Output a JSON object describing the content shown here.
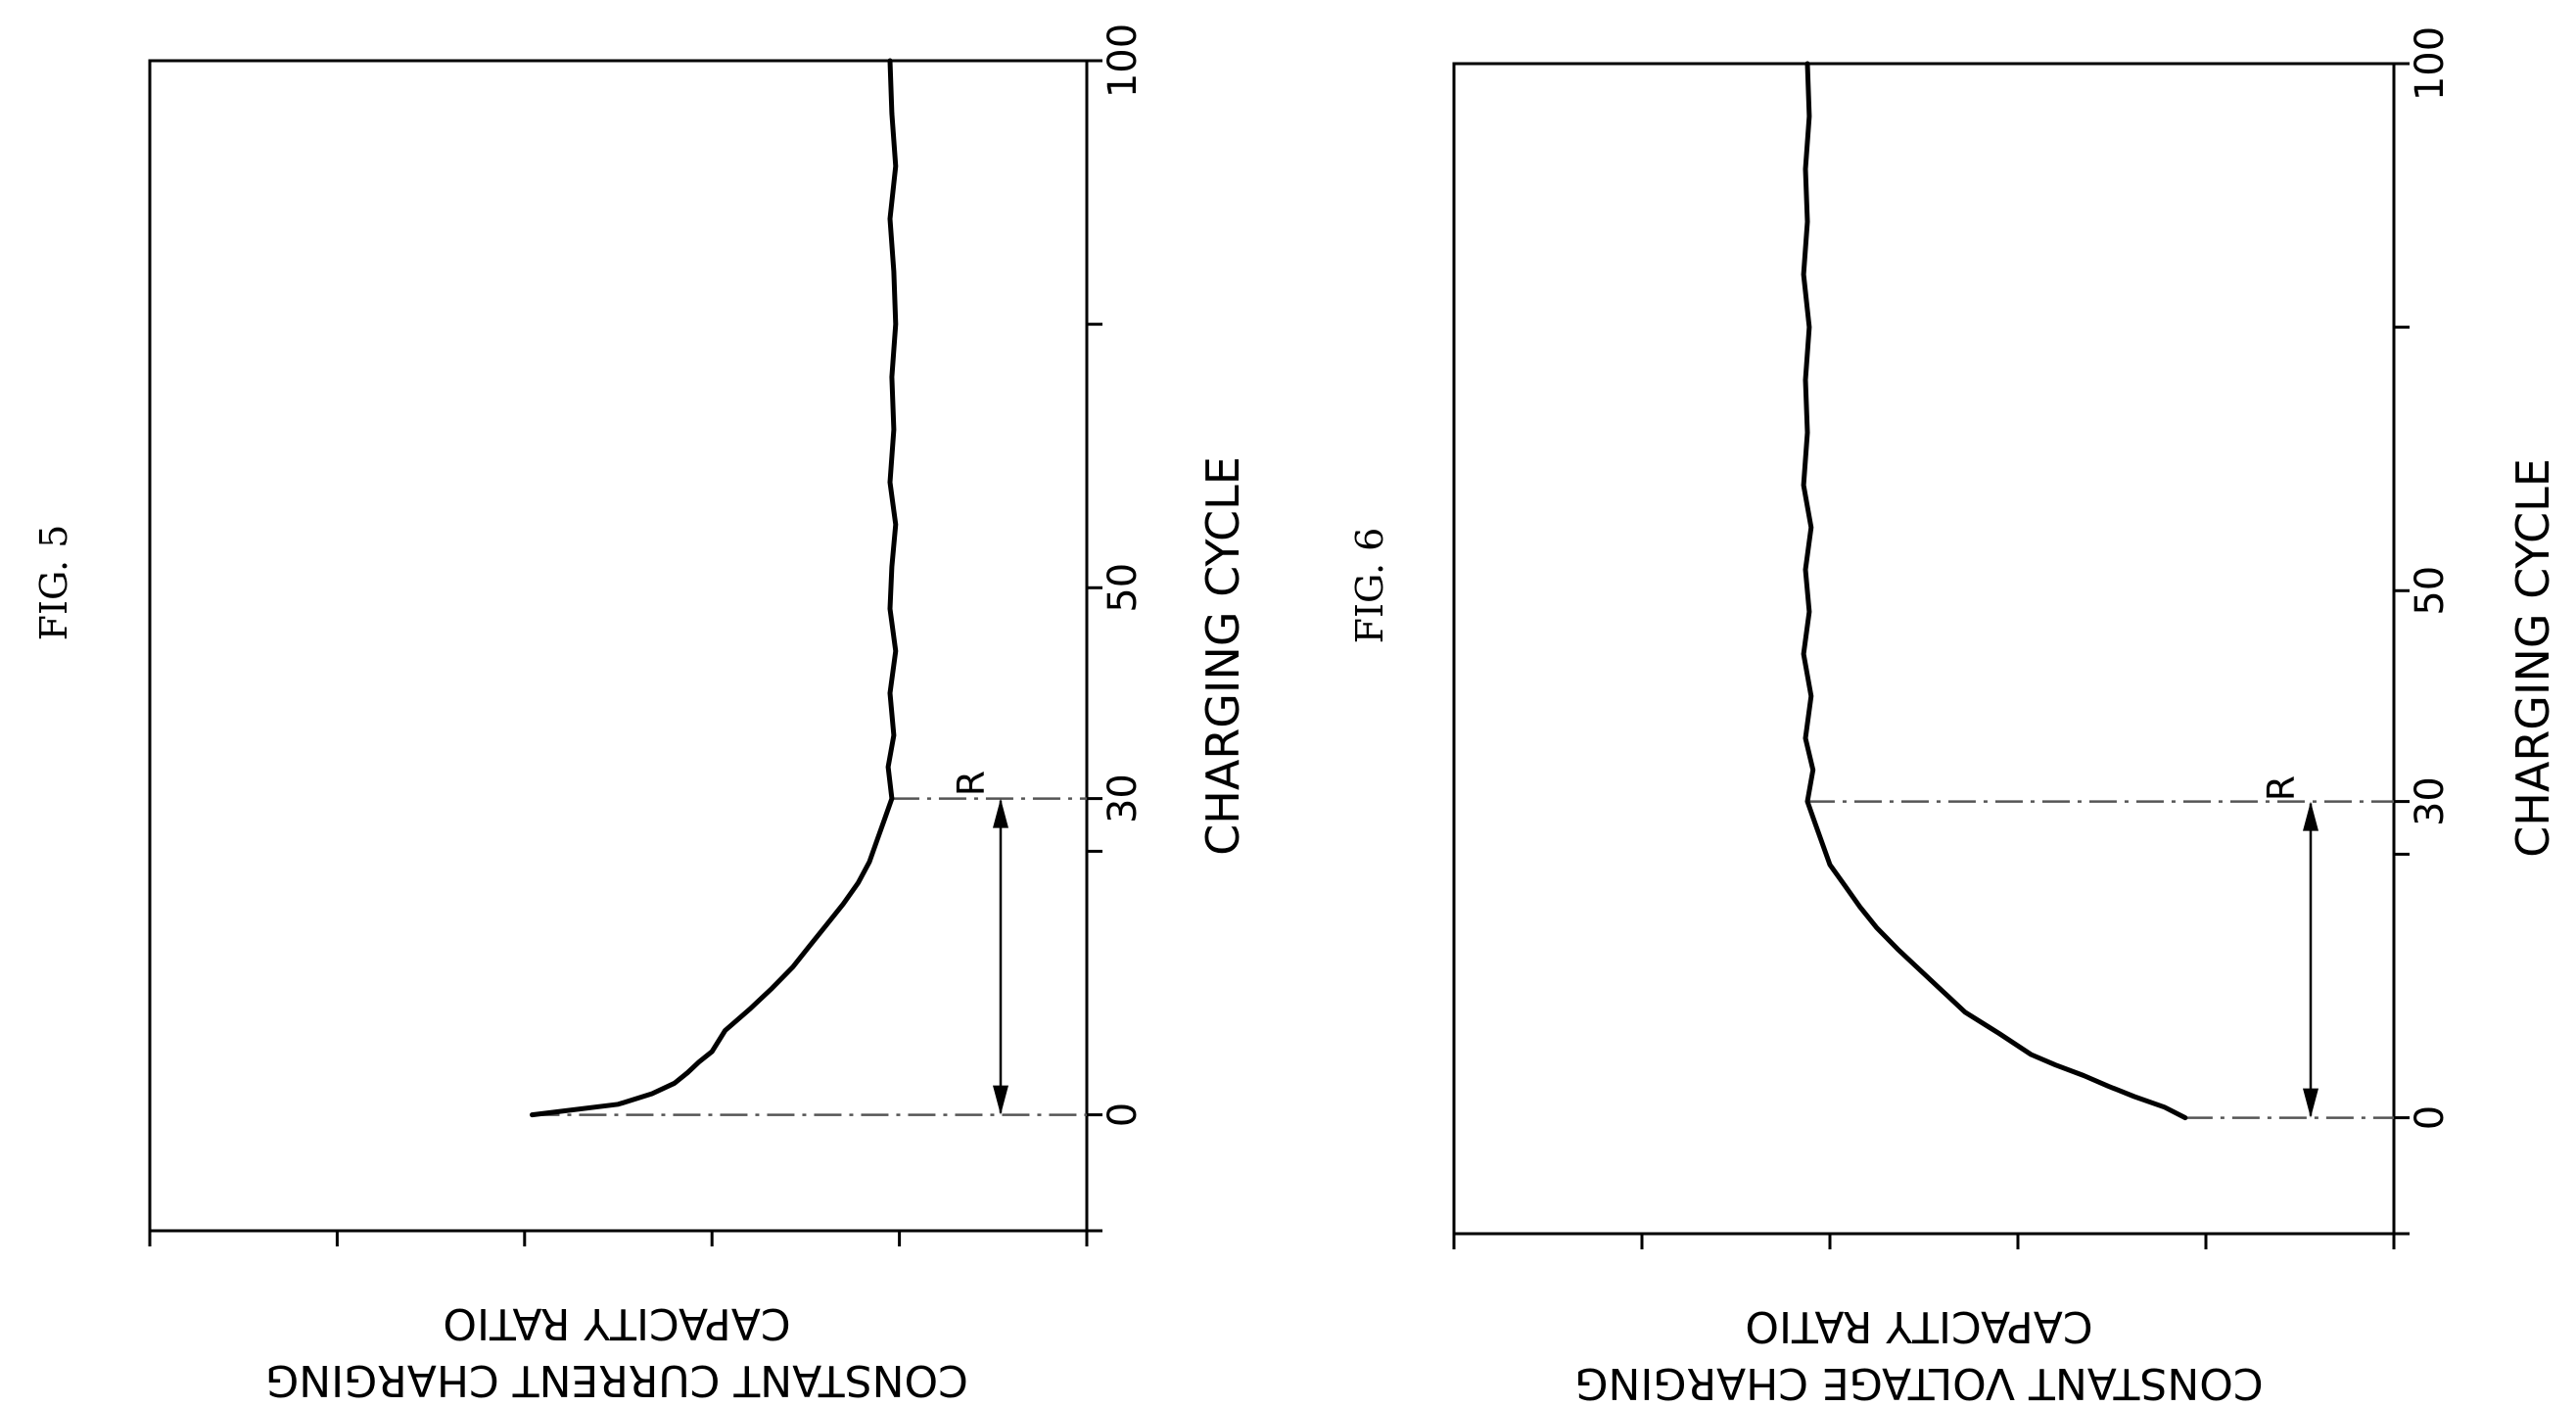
{
  "figures": [
    {
      "fig_label": "FIG. 5",
      "x_axis_label": "CHARGING CYCLE",
      "y_axis_label_line1": "CONSTANT CURRENT CHARGING",
      "y_axis_label_line2": "CAPACITY RATIO",
      "x_tick_labels": [
        "0",
        "30",
        "50",
        "100"
      ],
      "range_label": "R"
    },
    {
      "fig_label": "FIG. 6",
      "x_axis_label": "CHARGING CYCLE",
      "y_axis_label_line1": "CONSTANT VOLTAGE CHARGING",
      "y_axis_label_line2": "CAPACITY RATIO",
      "x_tick_labels": [
        "0",
        "30",
        "50",
        "100"
      ],
      "range_label": "R"
    }
  ],
  "chart_data": [
    {
      "type": "line",
      "title": "FIG. 5",
      "xlabel": "CHARGING CYCLE",
      "ylabel": "CONSTANT CURRENT CHARGING CAPACITY RATIO",
      "xlim": [
        -11,
        100
      ],
      "ylim": [
        0,
        5
      ],
      "x_ticks_labeled": [
        0,
        30,
        50,
        100
      ],
      "x_ticks_minor": [
        -11,
        25,
        75
      ],
      "annotations": [
        {
          "text": "R",
          "from_x": 0,
          "to_x": 30
        }
      ],
      "series": [
        {
          "x": [
            0,
            1,
            2,
            3,
            4,
            5,
            6,
            8,
            10,
            12,
            14,
            16,
            18,
            20,
            22,
            24,
            26,
            28,
            30,
            33,
            36,
            40,
            44,
            48,
            52,
            56,
            60,
            65,
            70,
            75,
            80,
            85,
            90,
            95,
            100
          ],
          "y": [
            2.04,
            2.5,
            2.68,
            2.8,
            2.87,
            2.93,
            3.0,
            3.07,
            3.2,
            3.32,
            3.43,
            3.52,
            3.61,
            3.7,
            3.78,
            3.84,
            3.88,
            3.92,
            3.96,
            3.94,
            3.97,
            3.95,
            3.98,
            3.95,
            3.96,
            3.98,
            3.95,
            3.97,
            3.96,
            3.98,
            3.97,
            3.95,
            3.98,
            3.96,
            3.95
          ]
        }
      ]
    },
    {
      "type": "line",
      "title": "FIG. 6",
      "xlabel": "CHARGING CYCLE",
      "ylabel": "CONSTANT VOLTAGE CHARGING CAPACITY RATIO",
      "xlim": [
        -11,
        100
      ],
      "ylim": [
        0,
        5
      ],
      "x_ticks_labeled": [
        0,
        30,
        50,
        100
      ],
      "x_ticks_minor": [
        -11,
        25,
        75
      ],
      "annotations": [
        {
          "text": "R",
          "from_x": 0,
          "to_x": 30
        }
      ],
      "series": [
        {
          "x": [
            0,
            1,
            2,
            3,
            4,
            5,
            6,
            8,
            10,
            12,
            14,
            16,
            18,
            20,
            22,
            24,
            26,
            28,
            30,
            33,
            36,
            40,
            44,
            48,
            52,
            56,
            60,
            65,
            70,
            75,
            80,
            85,
            90,
            95,
            100
          ],
          "y": [
            3.89,
            3.78,
            3.62,
            3.48,
            3.35,
            3.2,
            3.07,
            2.9,
            2.72,
            2.6,
            2.48,
            2.36,
            2.25,
            2.16,
            2.08,
            2.0,
            1.96,
            1.92,
            1.88,
            1.91,
            1.87,
            1.9,
            1.86,
            1.89,
            1.87,
            1.9,
            1.86,
            1.88,
            1.87,
            1.89,
            1.86,
            1.88,
            1.87,
            1.89,
            1.88
          ]
        }
      ]
    }
  ]
}
